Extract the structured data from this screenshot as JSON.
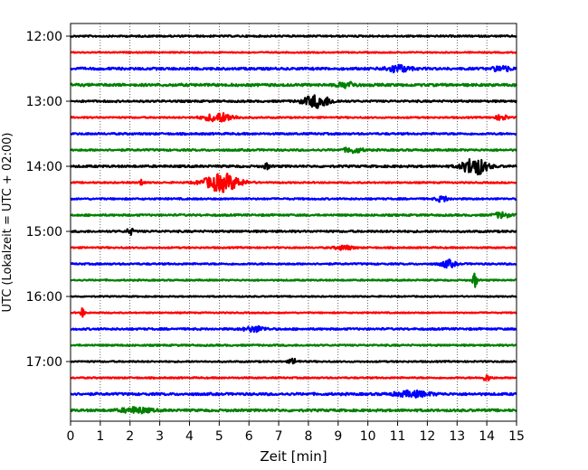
{
  "chart_data": {
    "type": "line",
    "subtype": "helicorder",
    "title": "",
    "xlabel": "Zeit  [min]",
    "ylabel": "UTC (Lokalzeit = UTC + 02:00)",
    "xlim": [
      0,
      15
    ],
    "x_ticks": [
      "0",
      "1",
      "2",
      "3",
      "4",
      "5",
      "6",
      "7",
      "8",
      "9",
      "10",
      "11",
      "12",
      "13",
      "14",
      "15"
    ],
    "y_tick_labels": [
      "12:00",
      "13:00",
      "14:00",
      "15:00",
      "16:00",
      "17:00"
    ],
    "grid": "vertical-dotted",
    "trace_colors": [
      "#000000",
      "#ff0000",
      "#0000ff",
      "#008000"
    ],
    "traces": [
      {
        "start": "12:00",
        "color": "#000000",
        "noise": 0.7,
        "events": []
      },
      {
        "start": "12:15",
        "color": "#ff0000",
        "noise": 0.5,
        "events": []
      },
      {
        "start": "12:30",
        "color": "#0000ff",
        "noise": 1.0,
        "events": [
          {
            "t": 11.0,
            "amp": 4,
            "dur": 0.8
          },
          {
            "t": 14.5,
            "amp": 3,
            "dur": 0.6
          }
        ]
      },
      {
        "start": "12:45",
        "color": "#008000",
        "noise": 1.1,
        "events": [
          {
            "t": 9.3,
            "amp": 3,
            "dur": 0.6
          }
        ]
      },
      {
        "start": "13:00",
        "color": "#000000",
        "noise": 0.8,
        "events": [
          {
            "t": 8.3,
            "amp": 7,
            "dur": 0.9
          }
        ]
      },
      {
        "start": "13:15",
        "color": "#ff0000",
        "noise": 0.6,
        "events": [
          {
            "t": 5.0,
            "amp": 5,
            "dur": 1.0
          },
          {
            "t": 14.5,
            "amp": 3,
            "dur": 0.4
          }
        ]
      },
      {
        "start": "13:30",
        "color": "#0000ff",
        "noise": 0.8,
        "events": []
      },
      {
        "start": "13:45",
        "color": "#008000",
        "noise": 0.8,
        "events": [
          {
            "t": 9.5,
            "amp": 3,
            "dur": 0.6
          }
        ]
      },
      {
        "start": "14:00",
        "color": "#000000",
        "noise": 0.9,
        "events": [
          {
            "t": 13.6,
            "amp": 10,
            "dur": 0.8
          },
          {
            "t": 6.6,
            "amp": 3,
            "dur": 0.2
          }
        ]
      },
      {
        "start": "14:15",
        "color": "#ff0000",
        "noise": 0.6,
        "events": [
          {
            "t": 5.1,
            "amp": 10,
            "dur": 1.2
          },
          {
            "t": 2.4,
            "amp": 4,
            "dur": 0.15
          }
        ]
      },
      {
        "start": "14:30",
        "color": "#0000ff",
        "noise": 0.7,
        "events": [
          {
            "t": 12.5,
            "amp": 3,
            "dur": 0.4
          }
        ]
      },
      {
        "start": "14:45",
        "color": "#008000",
        "noise": 0.8,
        "events": [
          {
            "t": 14.5,
            "amp": 3,
            "dur": 0.5
          }
        ]
      },
      {
        "start": "15:00",
        "color": "#000000",
        "noise": 0.8,
        "events": [
          {
            "t": 2.0,
            "amp": 4,
            "dur": 0.2
          }
        ]
      },
      {
        "start": "15:15",
        "color": "#ff0000",
        "noise": 0.6,
        "events": [
          {
            "t": 9.2,
            "amp": 2.5,
            "dur": 0.6
          }
        ]
      },
      {
        "start": "15:30",
        "color": "#0000ff",
        "noise": 0.7,
        "events": [
          {
            "t": 12.7,
            "amp": 4,
            "dur": 0.5
          }
        ]
      },
      {
        "start": "15:45",
        "color": "#008000",
        "noise": 0.6,
        "events": [
          {
            "t": 13.6,
            "amp": 8,
            "dur": 0.15
          }
        ]
      },
      {
        "start": "16:00",
        "color": "#000000",
        "noise": 0.5,
        "events": []
      },
      {
        "start": "16:15",
        "color": "#ff0000",
        "noise": 0.5,
        "events": [
          {
            "t": 0.4,
            "amp": 6,
            "dur": 0.12
          }
        ]
      },
      {
        "start": "16:30",
        "color": "#0000ff",
        "noise": 0.8,
        "events": [
          {
            "t": 6.2,
            "amp": 3,
            "dur": 0.7
          }
        ]
      },
      {
        "start": "16:45",
        "color": "#008000",
        "noise": 0.7,
        "events": []
      },
      {
        "start": "17:00",
        "color": "#000000",
        "noise": 0.6,
        "events": [
          {
            "t": 7.5,
            "amp": 3,
            "dur": 0.3
          }
        ]
      },
      {
        "start": "17:15",
        "color": "#ff0000",
        "noise": 0.6,
        "events": [
          {
            "t": 14.0,
            "amp": 3,
            "dur": 0.3
          }
        ]
      },
      {
        "start": "17:30",
        "color": "#0000ff",
        "noise": 1.0,
        "events": [
          {
            "t": 11.5,
            "amp": 3,
            "dur": 1.2
          }
        ]
      },
      {
        "start": "17:45",
        "color": "#008000",
        "noise": 1.0,
        "events": [
          {
            "t": 2.2,
            "amp": 3,
            "dur": 1.0
          }
        ]
      }
    ]
  }
}
